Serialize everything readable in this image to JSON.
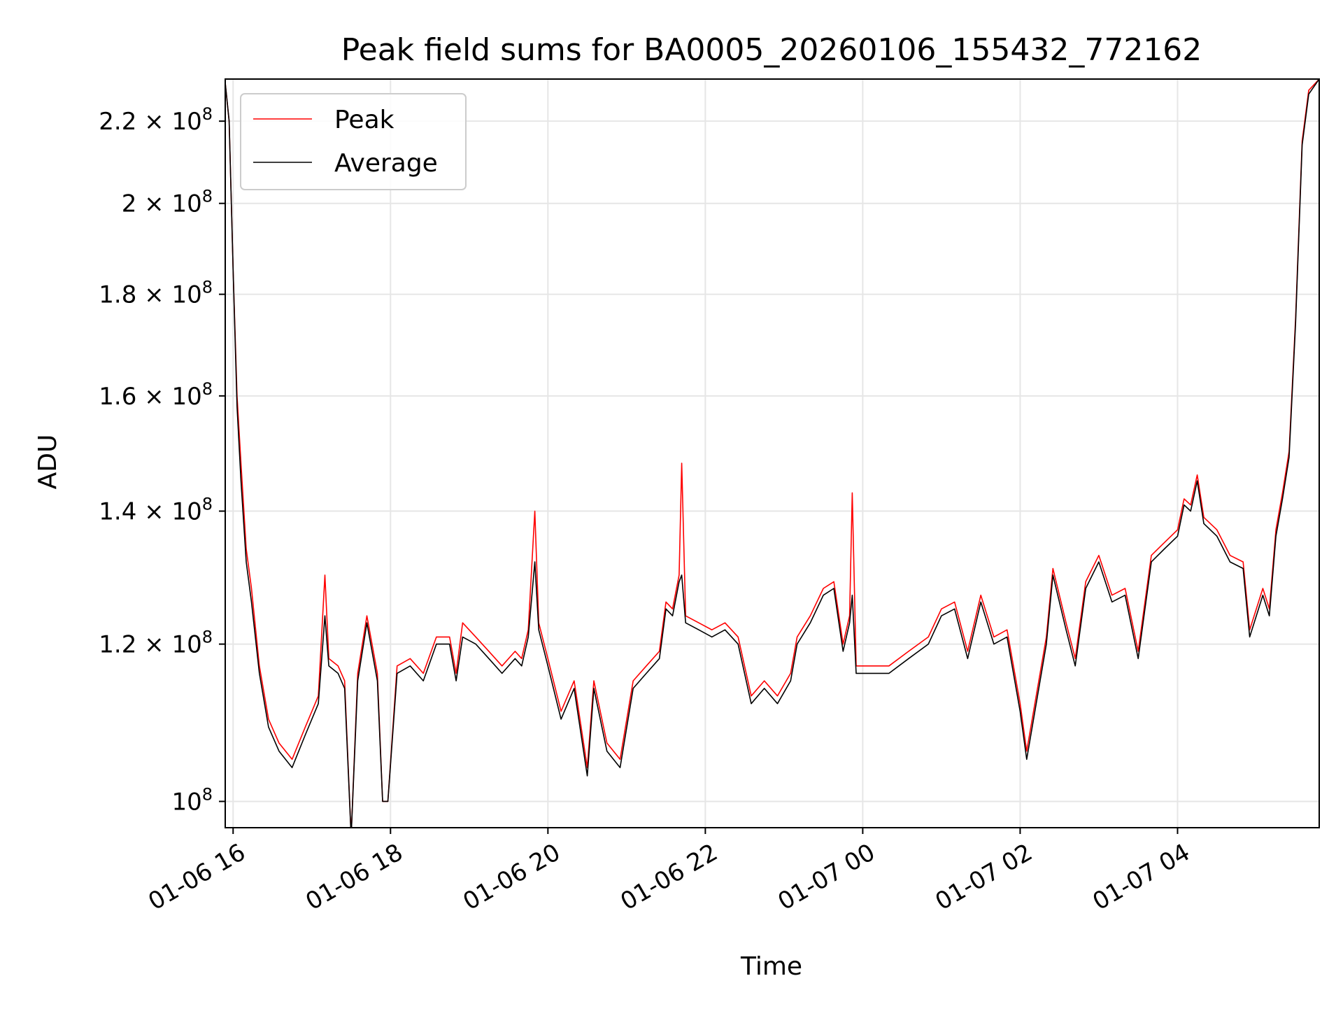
{
  "chart_data": {
    "type": "line",
    "title": "Peak field sums for BA0005_20260106_155432_772162",
    "xlabel": "Time",
    "ylabel": "ADU",
    "yscale": "log",
    "xlim": [
      "2026-01-06 15:54",
      "2026-01-07 05:48"
    ],
    "ylim": [
      97000000,
      231000000
    ],
    "grid": true,
    "legend_position": "top-left",
    "x_ticks": [
      {
        "t": "2026-01-06 16:00",
        "label": "01-06 16"
      },
      {
        "t": "2026-01-06 18:00",
        "label": "01-06 18"
      },
      {
        "t": "2026-01-06 20:00",
        "label": "01-06 20"
      },
      {
        "t": "2026-01-06 22:00",
        "label": "01-06 22"
      },
      {
        "t": "2026-01-07 00:00",
        "label": "01-07 00"
      },
      {
        "t": "2026-01-07 02:00",
        "label": "01-07 02"
      },
      {
        "t": "2026-01-07 04:00",
        "label": "01-07 04"
      }
    ],
    "y_ticks": [
      {
        "value": 100000000,
        "mantissa": "",
        "exp": "8"
      },
      {
        "value": 120000000,
        "mantissa": "1.2",
        "exp": "8"
      },
      {
        "value": 140000000,
        "mantissa": "1.4",
        "exp": "8"
      },
      {
        "value": 160000000,
        "mantissa": "1.6",
        "exp": "8"
      },
      {
        "value": 180000000,
        "mantissa": "1.8",
        "exp": "8"
      },
      {
        "value": 200000000,
        "mantissa": "2",
        "exp": "8"
      },
      {
        "value": 220000000,
        "mantissa": "2.2",
        "exp": "8"
      }
    ],
    "series": [
      {
        "name": "Peak",
        "color": "#ff0000",
        "points": [
          [
            "2026-01-06 15:54",
            230000000
          ],
          [
            "2026-01-06 15:57",
            220000000
          ],
          [
            "2026-01-06 16:00",
            185000000
          ],
          [
            "2026-01-06 16:03",
            160000000
          ],
          [
            "2026-01-06 16:06",
            148000000
          ],
          [
            "2026-01-06 16:10",
            134000000
          ],
          [
            "2026-01-06 16:14",
            128000000
          ],
          [
            "2026-01-06 16:20",
            117000000
          ],
          [
            "2026-01-06 16:27",
            110000000
          ],
          [
            "2026-01-06 16:35",
            107000000
          ],
          [
            "2026-01-06 16:45",
            105000000
          ],
          [
            "2026-01-06 16:55",
            109000000
          ],
          [
            "2026-01-06 17:05",
            113000000
          ],
          [
            "2026-01-06 17:10",
            130000000
          ],
          [
            "2026-01-06 17:13",
            118000000
          ],
          [
            "2026-01-06 17:20",
            117000000
          ],
          [
            "2026-01-06 17:25",
            115000000
          ],
          [
            "2026-01-06 17:30",
            96000000
          ],
          [
            "2026-01-06 17:35",
            116000000
          ],
          [
            "2026-01-06 17:42",
            124000000
          ],
          [
            "2026-01-06 17:50",
            116000000
          ],
          [
            "2026-01-06 17:54",
            100000000
          ],
          [
            "2026-01-06 17:58",
            100000000
          ],
          [
            "2026-01-06 18:05",
            117000000
          ],
          [
            "2026-01-06 18:15",
            118000000
          ],
          [
            "2026-01-06 18:25",
            116000000
          ],
          [
            "2026-01-06 18:35",
            121000000
          ],
          [
            "2026-01-06 18:45",
            121000000
          ],
          [
            "2026-01-06 18:50",
            116000000
          ],
          [
            "2026-01-06 18:55",
            123000000
          ],
          [
            "2026-01-06 19:05",
            121000000
          ],
          [
            "2026-01-06 19:15",
            119000000
          ],
          [
            "2026-01-06 19:25",
            117000000
          ],
          [
            "2026-01-06 19:35",
            119000000
          ],
          [
            "2026-01-06 19:40",
            118000000
          ],
          [
            "2026-01-06 19:45",
            122000000
          ],
          [
            "2026-01-06 19:50",
            140000000
          ],
          [
            "2026-01-06 19:53",
            123000000
          ],
          [
            "2026-01-06 20:00",
            118000000
          ],
          [
            "2026-01-06 20:10",
            111000000
          ],
          [
            "2026-01-06 20:20",
            115000000
          ],
          [
            "2026-01-06 20:30",
            104000000
          ],
          [
            "2026-01-06 20:35",
            115000000
          ],
          [
            "2026-01-06 20:45",
            107000000
          ],
          [
            "2026-01-06 20:55",
            105000000
          ],
          [
            "2026-01-06 21:05",
            115000000
          ],
          [
            "2026-01-06 21:15",
            117000000
          ],
          [
            "2026-01-06 21:25",
            119000000
          ],
          [
            "2026-01-06 21:30",
            126000000
          ],
          [
            "2026-01-06 21:35",
            125000000
          ],
          [
            "2026-01-06 21:40",
            130000000
          ],
          [
            "2026-01-06 21:42",
            148000000
          ],
          [
            "2026-01-06 21:45",
            124000000
          ],
          [
            "2026-01-06 21:55",
            123000000
          ],
          [
            "2026-01-06 22:05",
            122000000
          ],
          [
            "2026-01-06 22:15",
            123000000
          ],
          [
            "2026-01-06 22:25",
            121000000
          ],
          [
            "2026-01-06 22:35",
            113000000
          ],
          [
            "2026-01-06 22:45",
            115000000
          ],
          [
            "2026-01-06 22:55",
            113000000
          ],
          [
            "2026-01-06 23:05",
            116000000
          ],
          [
            "2026-01-06 23:10",
            121000000
          ],
          [
            "2026-01-06 23:20",
            124000000
          ],
          [
            "2026-01-06 23:30",
            128000000
          ],
          [
            "2026-01-06 23:38",
            129000000
          ],
          [
            "2026-01-06 23:45",
            120000000
          ],
          [
            "2026-01-06 23:50",
            124000000
          ],
          [
            "2026-01-06 23:52",
            143000000
          ],
          [
            "2026-01-06 23:55",
            117000000
          ],
          [
            "2026-01-07 00:05",
            117000000
          ],
          [
            "2026-01-07 00:20",
            117000000
          ],
          [
            "2026-01-07 00:35",
            119000000
          ],
          [
            "2026-01-07 00:50",
            121000000
          ],
          [
            "2026-01-07 01:00",
            125000000
          ],
          [
            "2026-01-07 01:10",
            126000000
          ],
          [
            "2026-01-07 01:20",
            119000000
          ],
          [
            "2026-01-07 01:30",
            127000000
          ],
          [
            "2026-01-07 01:40",
            121000000
          ],
          [
            "2026-01-07 01:50",
            122000000
          ],
          [
            "2026-01-07 02:00",
            112000000
          ],
          [
            "2026-01-07 02:05",
            106000000
          ],
          [
            "2026-01-07 02:20",
            121000000
          ],
          [
            "2026-01-07 02:25",
            131000000
          ],
          [
            "2026-01-07 02:35",
            123000000
          ],
          [
            "2026-01-07 02:42",
            118000000
          ],
          [
            "2026-01-07 02:50",
            129000000
          ],
          [
            "2026-01-07 03:00",
            133000000
          ],
          [
            "2026-01-07 03:10",
            127000000
          ],
          [
            "2026-01-07 03:20",
            128000000
          ],
          [
            "2026-01-07 03:30",
            119000000
          ],
          [
            "2026-01-07 03:40",
            133000000
          ],
          [
            "2026-01-07 03:50",
            135000000
          ],
          [
            "2026-01-07 04:00",
            137000000
          ],
          [
            "2026-01-07 04:05",
            142000000
          ],
          [
            "2026-01-07 04:10",
            141000000
          ],
          [
            "2026-01-07 04:15",
            146000000
          ],
          [
            "2026-01-07 04:20",
            139000000
          ],
          [
            "2026-01-07 04:30",
            137000000
          ],
          [
            "2026-01-07 04:40",
            133000000
          ],
          [
            "2026-01-07 04:50",
            132000000
          ],
          [
            "2026-01-07 04:55",
            122000000
          ],
          [
            "2026-01-07 05:05",
            128000000
          ],
          [
            "2026-01-07 05:10",
            125000000
          ],
          [
            "2026-01-07 05:15",
            137000000
          ],
          [
            "2026-01-07 05:20",
            143000000
          ],
          [
            "2026-01-07 05:25",
            150000000
          ],
          [
            "2026-01-07 05:30",
            175000000
          ],
          [
            "2026-01-07 05:35",
            215000000
          ],
          [
            "2026-01-07 05:40",
            228000000
          ],
          [
            "2026-01-07 05:48",
            231000000
          ]
        ]
      },
      {
        "name": "Average",
        "color": "#000000",
        "points": [
          [
            "2026-01-06 15:54",
            230000000
          ],
          [
            "2026-01-06 15:57",
            220000000
          ],
          [
            "2026-01-06 16:00",
            185000000
          ],
          [
            "2026-01-06 16:03",
            158000000
          ],
          [
            "2026-01-06 16:06",
            145000000
          ],
          [
            "2026-01-06 16:10",
            132000000
          ],
          [
            "2026-01-06 16:14",
            126000000
          ],
          [
            "2026-01-06 16:20",
            116000000
          ],
          [
            "2026-01-06 16:27",
            109000000
          ],
          [
            "2026-01-06 16:35",
            106000000
          ],
          [
            "2026-01-06 16:45",
            104000000
          ],
          [
            "2026-01-06 16:55",
            108000000
          ],
          [
            "2026-01-06 17:05",
            112000000
          ],
          [
            "2026-01-06 17:10",
            124000000
          ],
          [
            "2026-01-06 17:13",
            117000000
          ],
          [
            "2026-01-06 17:20",
            116000000
          ],
          [
            "2026-01-06 17:25",
            114000000
          ],
          [
            "2026-01-06 17:30",
            96000000
          ],
          [
            "2026-01-06 17:35",
            115000000
          ],
          [
            "2026-01-06 17:42",
            123000000
          ],
          [
            "2026-01-06 17:50",
            115000000
          ],
          [
            "2026-01-06 17:54",
            100000000
          ],
          [
            "2026-01-06 17:58",
            100000000
          ],
          [
            "2026-01-06 18:05",
            116000000
          ],
          [
            "2026-01-06 18:15",
            117000000
          ],
          [
            "2026-01-06 18:25",
            115000000
          ],
          [
            "2026-01-06 18:35",
            120000000
          ],
          [
            "2026-01-06 18:45",
            120000000
          ],
          [
            "2026-01-06 18:50",
            115000000
          ],
          [
            "2026-01-06 18:55",
            121000000
          ],
          [
            "2026-01-06 19:05",
            120000000
          ],
          [
            "2026-01-06 19:15",
            118000000
          ],
          [
            "2026-01-06 19:25",
            116000000
          ],
          [
            "2026-01-06 19:35",
            118000000
          ],
          [
            "2026-01-06 19:40",
            117000000
          ],
          [
            "2026-01-06 19:45",
            121000000
          ],
          [
            "2026-01-06 19:50",
            132000000
          ],
          [
            "2026-01-06 19:53",
            122000000
          ],
          [
            "2026-01-06 20:00",
            117000000
          ],
          [
            "2026-01-06 20:10",
            110000000
          ],
          [
            "2026-01-06 20:20",
            114000000
          ],
          [
            "2026-01-06 20:30",
            103000000
          ],
          [
            "2026-01-06 20:35",
            114000000
          ],
          [
            "2026-01-06 20:45",
            106000000
          ],
          [
            "2026-01-06 20:55",
            104000000
          ],
          [
            "2026-01-06 21:05",
            114000000
          ],
          [
            "2026-01-06 21:15",
            116000000
          ],
          [
            "2026-01-06 21:25",
            118000000
          ],
          [
            "2026-01-06 21:30",
            125000000
          ],
          [
            "2026-01-06 21:35",
            124000000
          ],
          [
            "2026-01-06 21:40",
            129000000
          ],
          [
            "2026-01-06 21:42",
            130000000
          ],
          [
            "2026-01-06 21:45",
            123000000
          ],
          [
            "2026-01-06 21:55",
            122000000
          ],
          [
            "2026-01-06 22:05",
            121000000
          ],
          [
            "2026-01-06 22:15",
            122000000
          ],
          [
            "2026-01-06 22:25",
            120000000
          ],
          [
            "2026-01-06 22:35",
            112000000
          ],
          [
            "2026-01-06 22:45",
            114000000
          ],
          [
            "2026-01-06 22:55",
            112000000
          ],
          [
            "2026-01-06 23:05",
            115000000
          ],
          [
            "2026-01-06 23:10",
            120000000
          ],
          [
            "2026-01-06 23:20",
            123000000
          ],
          [
            "2026-01-06 23:30",
            127000000
          ],
          [
            "2026-01-06 23:38",
            128000000
          ],
          [
            "2026-01-06 23:45",
            119000000
          ],
          [
            "2026-01-06 23:50",
            123000000
          ],
          [
            "2026-01-06 23:52",
            127000000
          ],
          [
            "2026-01-06 23:55",
            116000000
          ],
          [
            "2026-01-07 00:05",
            116000000
          ],
          [
            "2026-01-07 00:20",
            116000000
          ],
          [
            "2026-01-07 00:35",
            118000000
          ],
          [
            "2026-01-07 00:50",
            120000000
          ],
          [
            "2026-01-07 01:00",
            124000000
          ],
          [
            "2026-01-07 01:10",
            125000000
          ],
          [
            "2026-01-07 01:20",
            118000000
          ],
          [
            "2026-01-07 01:30",
            126000000
          ],
          [
            "2026-01-07 01:40",
            120000000
          ],
          [
            "2026-01-07 01:50",
            121000000
          ],
          [
            "2026-01-07 02:00",
            111000000
          ],
          [
            "2026-01-07 02:05",
            105000000
          ],
          [
            "2026-01-07 02:20",
            120000000
          ],
          [
            "2026-01-07 02:25",
            130000000
          ],
          [
            "2026-01-07 02:35",
            122000000
          ],
          [
            "2026-01-07 02:42",
            117000000
          ],
          [
            "2026-01-07 02:50",
            128000000
          ],
          [
            "2026-01-07 03:00",
            132000000
          ],
          [
            "2026-01-07 03:10",
            126000000
          ],
          [
            "2026-01-07 03:20",
            127000000
          ],
          [
            "2026-01-07 03:30",
            118000000
          ],
          [
            "2026-01-07 03:40",
            132000000
          ],
          [
            "2026-01-07 03:50",
            134000000
          ],
          [
            "2026-01-07 04:00",
            136000000
          ],
          [
            "2026-01-07 04:05",
            141000000
          ],
          [
            "2026-01-07 04:10",
            140000000
          ],
          [
            "2026-01-07 04:15",
            145000000
          ],
          [
            "2026-01-07 04:20",
            138000000
          ],
          [
            "2026-01-07 04:30",
            136000000
          ],
          [
            "2026-01-07 04:40",
            132000000
          ],
          [
            "2026-01-07 04:50",
            131000000
          ],
          [
            "2026-01-07 04:55",
            121000000
          ],
          [
            "2026-01-07 05:05",
            127000000
          ],
          [
            "2026-01-07 05:10",
            124000000
          ],
          [
            "2026-01-07 05:15",
            136000000
          ],
          [
            "2026-01-07 05:20",
            142000000
          ],
          [
            "2026-01-07 05:25",
            149000000
          ],
          [
            "2026-01-07 05:30",
            174000000
          ],
          [
            "2026-01-07 05:35",
            214000000
          ],
          [
            "2026-01-07 05:40",
            227000000
          ],
          [
            "2026-01-07 05:48",
            231000000
          ]
        ]
      }
    ]
  },
  "style": {
    "grid_color": "#e6e6e6",
    "axis_color": "#000000",
    "background": "#ffffff"
  }
}
